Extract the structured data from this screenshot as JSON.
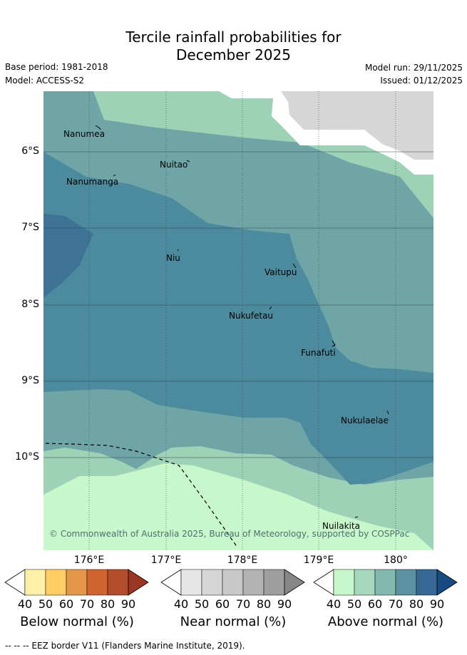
{
  "title": {
    "line1": "Tercile rainfall probabilities for",
    "line2": "December 2025"
  },
  "meta": {
    "base_period": "Base period: 1981-2018",
    "model": "Model: ACCESS-S2",
    "model_run": "Model run: 29/11/2025",
    "issued": "Issued: 01/12/2025"
  },
  "axes": {
    "lat_labels": [
      "6°S",
      "7°S",
      "8°S",
      "9°S",
      "10°S"
    ],
    "lon_labels": [
      "176°E",
      "177°E",
      "178°E",
      "179°E",
      "180°"
    ]
  },
  "places": {
    "nanumea": "Nanumea",
    "nuitao": "Nuitao",
    "nanumanga": "Nanumanga",
    "niu": "Niu",
    "vaitupu": "Vaitupu",
    "nukufetau": "Nukufetau",
    "funafuti": "Funafuti",
    "nukulaelae": "Nukulaelae",
    "nuilakita": "Nuilakita"
  },
  "copyright": "© Commonwealth of Australia 2025, Bureau of Meteorology, supported by COSPPac",
  "colors": {
    "above_40": "#c8f7cb",
    "above_50": "#9ed2b7",
    "above_60": "#6fa5a6",
    "above_70": "#4c8a9e",
    "above_80": "#3e7396",
    "above_90": "#1a4a80",
    "no_data": "#d6d6d6"
  },
  "legends": [
    {
      "name": "Below normal (%)",
      "ticks": [
        "40",
        "50",
        "60",
        "70",
        "80",
        "90"
      ],
      "colors": [
        "#ffffff",
        "#fff0a8",
        "#ffcc66",
        "#e39647",
        "#d0652f",
        "#b34c2a",
        "#9b3623"
      ]
    },
    {
      "name": "Near normal (%)",
      "ticks": [
        "40",
        "50",
        "60",
        "70",
        "80",
        "90"
      ],
      "colors": [
        "#ffffff",
        "#e6e6e6",
        "#d6d6d6",
        "#c8c8c8",
        "#b3b3b3",
        "#9e9e9e",
        "#878787"
      ]
    },
    {
      "name": "Above normal (%)",
      "ticks": [
        "40",
        "50",
        "60",
        "70",
        "80",
        "90"
      ],
      "colors": [
        "#ffffff",
        "#c8f7cb",
        "#a6d9bc",
        "#82b8ae",
        "#5a929f",
        "#386896",
        "#164a80"
      ]
    }
  ],
  "footer": "-- -- -- EEZ border V11 (Flanders Marine Institute, 2019)."
}
